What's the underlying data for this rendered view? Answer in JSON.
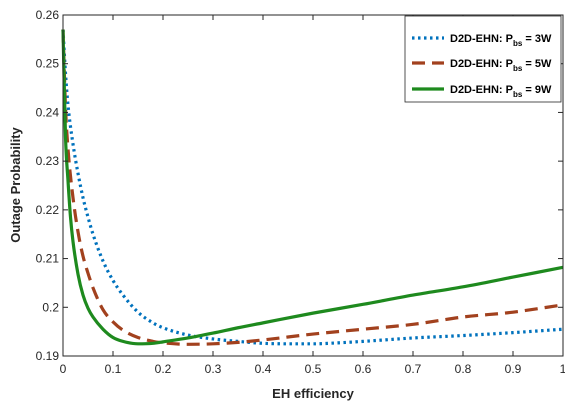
{
  "chart_data": {
    "type": "line",
    "xlabel": "EH efficiency",
    "ylabel": "Outage Probability",
    "xlim": [
      0,
      1
    ],
    "ylim": [
      0.19,
      0.26
    ],
    "xticks": [
      0,
      0.1,
      0.2,
      0.3,
      0.4,
      0.5,
      0.6,
      0.7,
      0.8,
      0.9,
      1
    ],
    "xtick_labels": [
      "0",
      "0.1",
      "0.2",
      "0.3",
      "0.4",
      "0.5",
      "0.6",
      "0.7",
      "0.8",
      "0.9",
      "1"
    ],
    "yticks": [
      0.19,
      0.2,
      0.21,
      0.22,
      0.23,
      0.24,
      0.25,
      0.26
    ],
    "ytick_labels": [
      "0.19",
      "0.2",
      "0.21",
      "0.22",
      "0.23",
      "0.24",
      "0.25",
      "0.26"
    ],
    "grid": false,
    "legend_position": "top-right",
    "series": [
      {
        "name": "D2D-EHN: Pbs = 3W",
        "legend_main": "D2D-EHN: P",
        "legend_sub": "bs",
        "legend_tail": " = 3W",
        "color": "#0072bd",
        "style": "dotted",
        "x": [
          0,
          0.005,
          0.01,
          0.02,
          0.03,
          0.04,
          0.05,
          0.06,
          0.08,
          0.1,
          0.12,
          0.15,
          0.18,
          0.2,
          0.25,
          0.3,
          0.35,
          0.4,
          0.45,
          0.5,
          0.55,
          0.6,
          0.7,
          0.8,
          0.9,
          1.0
        ],
        "y": [
          0.257,
          0.248,
          0.2415,
          0.2335,
          0.2275,
          0.2225,
          0.2185,
          0.215,
          0.2095,
          0.2055,
          0.2025,
          0.199,
          0.1968,
          0.1958,
          0.1943,
          0.1935,
          0.193,
          0.1926,
          0.1925,
          0.1925,
          0.1927,
          0.193,
          0.1937,
          0.1942,
          0.1948,
          0.1955
        ]
      },
      {
        "name": "D2D-EHN: Pbs = 5W",
        "legend_main": "D2D-EHN: P",
        "legend_sub": "bs",
        "legend_tail": " = 5W",
        "color": "#a2411e",
        "style": "dashed",
        "x": [
          0,
          0.005,
          0.01,
          0.02,
          0.03,
          0.04,
          0.05,
          0.06,
          0.08,
          0.1,
          0.12,
          0.15,
          0.18,
          0.2,
          0.25,
          0.3,
          0.35,
          0.4,
          0.5,
          0.6,
          0.7,
          0.8,
          0.9,
          1.0
        ],
        "y": [
          0.257,
          0.241,
          0.2325,
          0.2225,
          0.2155,
          0.2105,
          0.207,
          0.204,
          0.1995,
          0.197,
          0.1953,
          0.1938,
          0.193,
          0.1927,
          0.1924,
          0.1925,
          0.1928,
          0.1933,
          0.1945,
          0.1955,
          0.1965,
          0.198,
          0.199,
          0.2005
        ]
      },
      {
        "name": "D2D-EHN: Pbs = 9W",
        "legend_main": "D2D-EHN: P",
        "legend_sub": "bs",
        "legend_tail": " = 9W",
        "color": "#1e8a1e",
        "style": "solid",
        "x": [
          0,
          0.005,
          0.01,
          0.015,
          0.02,
          0.03,
          0.04,
          0.05,
          0.06,
          0.08,
          0.1,
          0.12,
          0.15,
          0.18,
          0.2,
          0.25,
          0.3,
          0.35,
          0.4,
          0.5,
          0.6,
          0.7,
          0.8,
          0.9,
          1.0
        ],
        "y": [
          0.257,
          0.235,
          0.226,
          0.2185,
          0.2135,
          0.2068,
          0.2025,
          0.1998,
          0.198,
          0.1955,
          0.1938,
          0.193,
          0.1925,
          0.1926,
          0.1929,
          0.1937,
          0.1947,
          0.1958,
          0.1968,
          0.1988,
          0.2006,
          0.2025,
          0.2042,
          0.2062,
          0.2082
        ]
      }
    ]
  }
}
